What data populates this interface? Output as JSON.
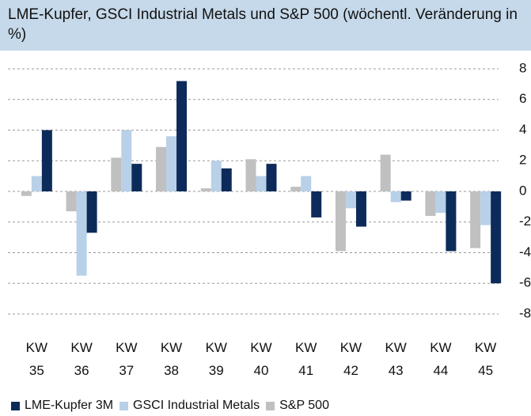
{
  "chart_data": {
    "type": "bar",
    "title": "LME-Kupfer, GSCI Industrial Metals und S&P 500 (wöchentl. Veränderung in %)",
    "categories": [
      "KW 35",
      "KW 36",
      "KW 37",
      "KW 38",
      "KW 39",
      "KW 40",
      "KW 41",
      "KW 42",
      "KW 43",
      "KW 44",
      "KW 45"
    ],
    "series": [
      {
        "name": "LME-Kupfer 3M",
        "color": "#0d2b5a",
        "values": [
          4.0,
          -2.7,
          1.8,
          7.2,
          1.5,
          1.8,
          -1.7,
          -2.3,
          -0.6,
          -3.9,
          -6.0
        ]
      },
      {
        "name": "GSCI Industrial Metals",
        "color": "#b8d0e8",
        "values": [
          1.0,
          -5.5,
          4.0,
          3.6,
          2.0,
          1.0,
          1.0,
          -1.1,
          -0.7,
          -1.4,
          -2.2
        ]
      },
      {
        "name": "S&P 500",
        "color": "#c0c0c0",
        "values": [
          -0.3,
          -1.3,
          2.2,
          2.9,
          0.2,
          2.1,
          0.3,
          -3.9,
          2.4,
          -1.6,
          -3.7
        ]
      }
    ],
    "ylim": [
      -8,
      8
    ],
    "yticks": [
      -8,
      -6,
      -4,
      -2,
      0,
      2,
      4,
      6,
      8
    ],
    "grid": true,
    "legend": "bottom"
  }
}
